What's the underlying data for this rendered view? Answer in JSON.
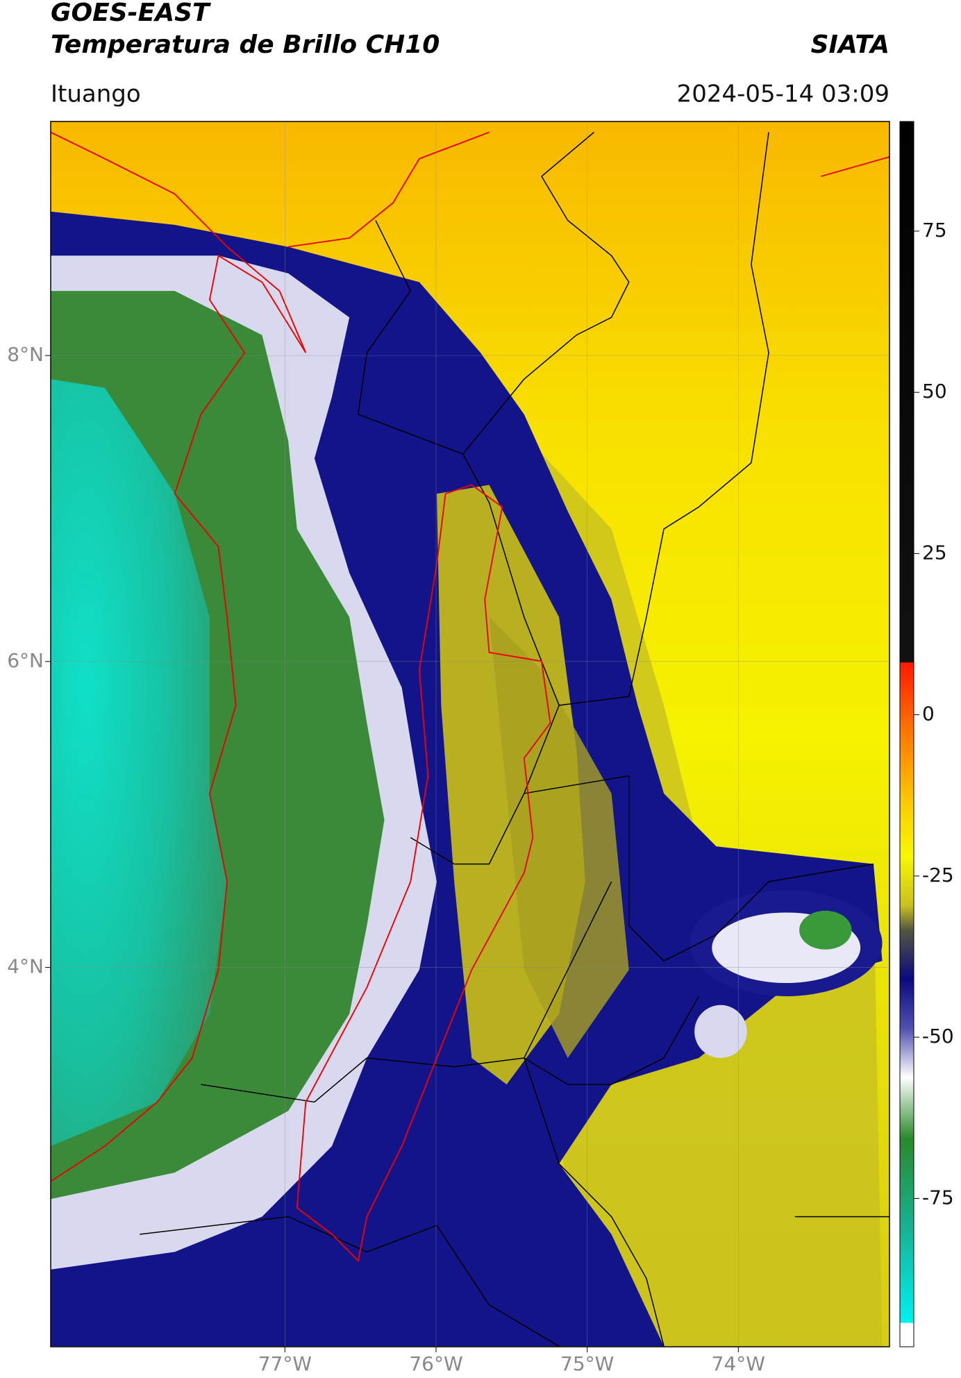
{
  "header": {
    "title": "GOES-EAST",
    "subtitle": "Temperatura de Brillo CH10",
    "source": "SIATA",
    "location": "Ituango",
    "datetime": "2024-05-14 03:09"
  },
  "map": {
    "xlim": [
      -78.55,
      -73.0
    ],
    "ylim": [
      1.52,
      9.53
    ],
    "xticks": [
      {
        "value": -77,
        "label": "77°W"
      },
      {
        "value": -76,
        "label": "76°W"
      },
      {
        "value": -75,
        "label": "75°W"
      },
      {
        "value": -74,
        "label": "74°W"
      }
    ],
    "yticks": [
      {
        "value": 8,
        "label": "8°N"
      },
      {
        "value": 6,
        "label": "6°N"
      },
      {
        "value": 4,
        "label": "4°N"
      }
    ]
  },
  "colorbar": {
    "lim": [
      -98,
      92
    ],
    "ticks": [
      75,
      50,
      25,
      0,
      -25,
      -50,
      -75
    ]
  }
}
